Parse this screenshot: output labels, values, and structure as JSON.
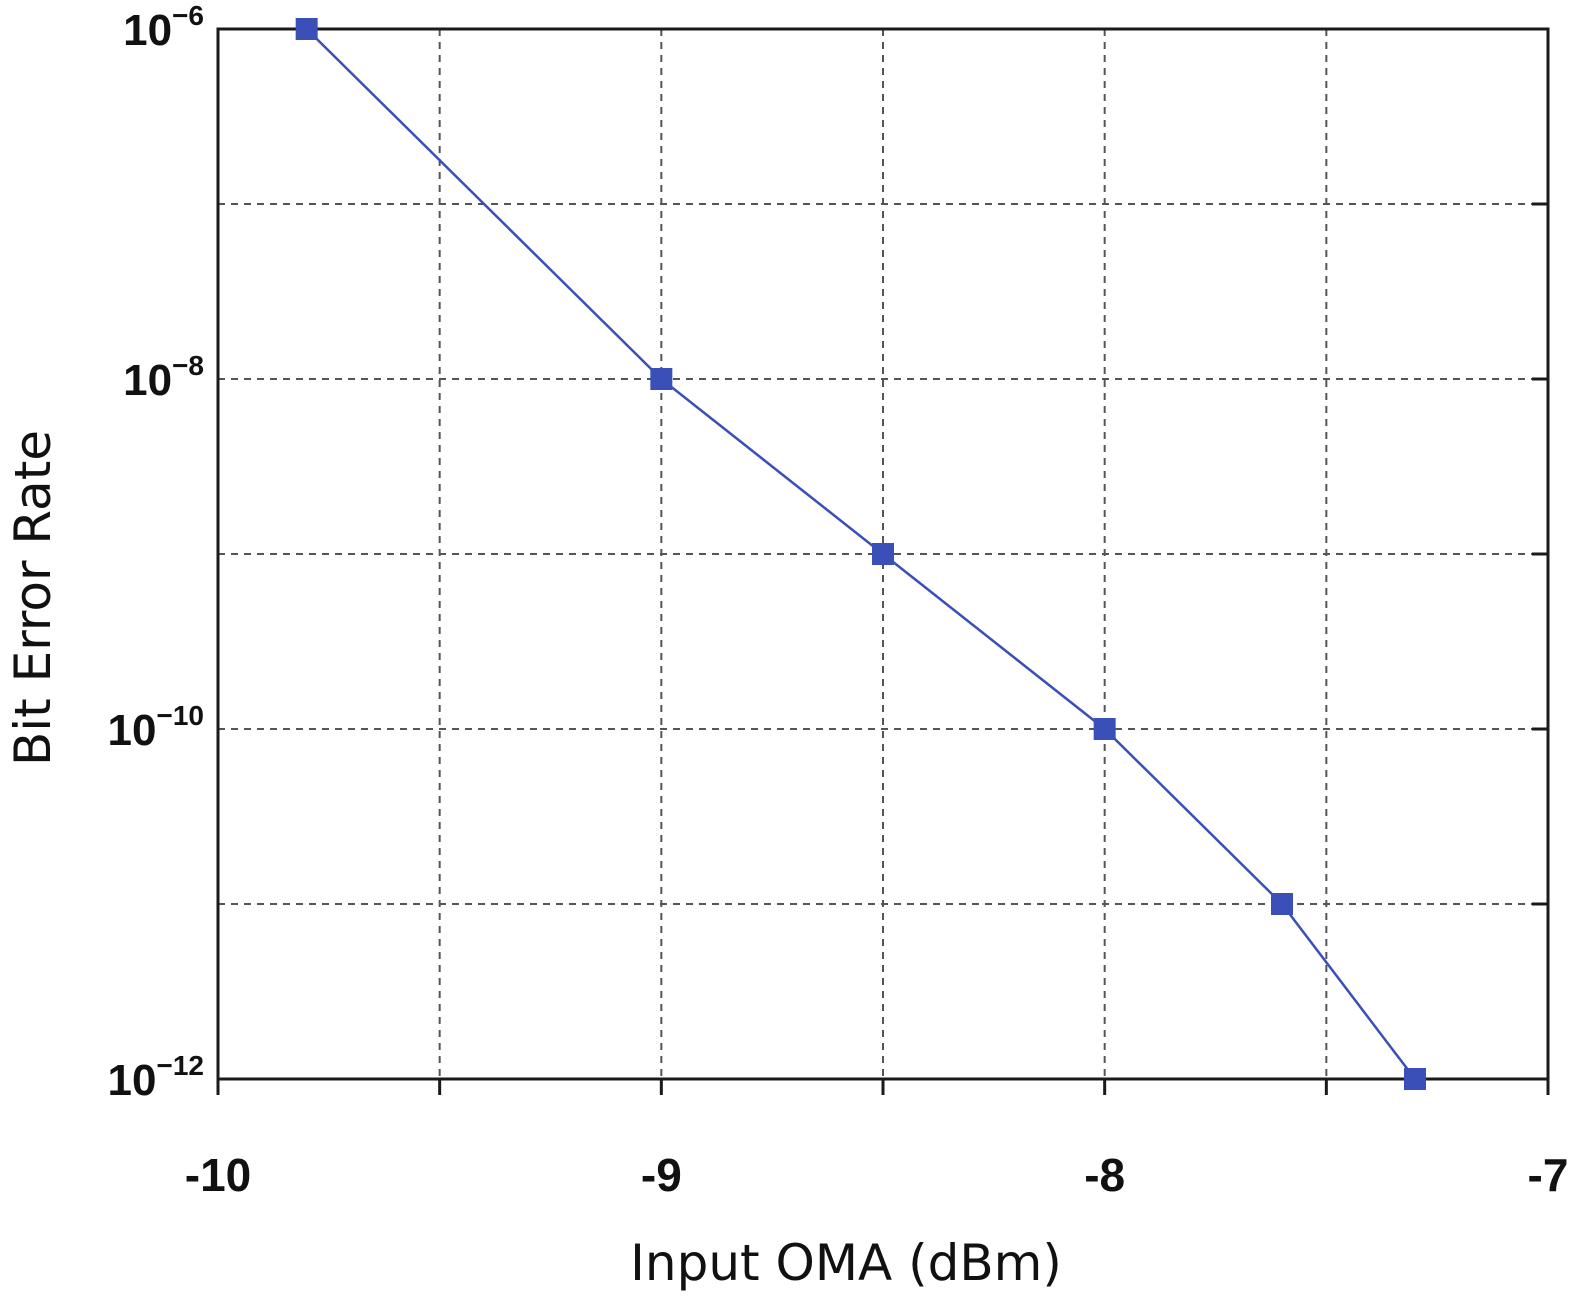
{
  "chart_data": {
    "type": "line",
    "title": "",
    "xlabel": "Input OMA (dBm)",
    "ylabel": "Bit Error Rate",
    "x_scale": "linear",
    "y_scale": "log",
    "xlim": [
      -10,
      -7
    ],
    "ylim": [
      1e-12,
      1e-06
    ],
    "grid": true,
    "x_ticks": [
      {
        "value": -10,
        "label": "-10"
      },
      {
        "value": -9,
        "label": "-9"
      },
      {
        "value": -8,
        "label": "-8"
      },
      {
        "value": -7,
        "label": "-7"
      }
    ],
    "y_ticks": [
      {
        "value": 1e-06,
        "base": "10",
        "exp": "−6"
      },
      {
        "value": 1e-08,
        "base": "10",
        "exp": "−8"
      },
      {
        "value": 1e-10,
        "base": "10",
        "exp": "−10"
      },
      {
        "value": 1e-12,
        "base": "10",
        "exp": "−12"
      }
    ],
    "series": [
      {
        "color": "#3b4fb8",
        "marker": "square",
        "x": [
          -9.8,
          -9.0,
          -8.5,
          -8.0,
          -7.6,
          -7.3
        ],
        "y": [
          1e-06,
          1e-08,
          1e-09,
          1e-10,
          1e-11,
          1e-12
        ]
      }
    ]
  }
}
